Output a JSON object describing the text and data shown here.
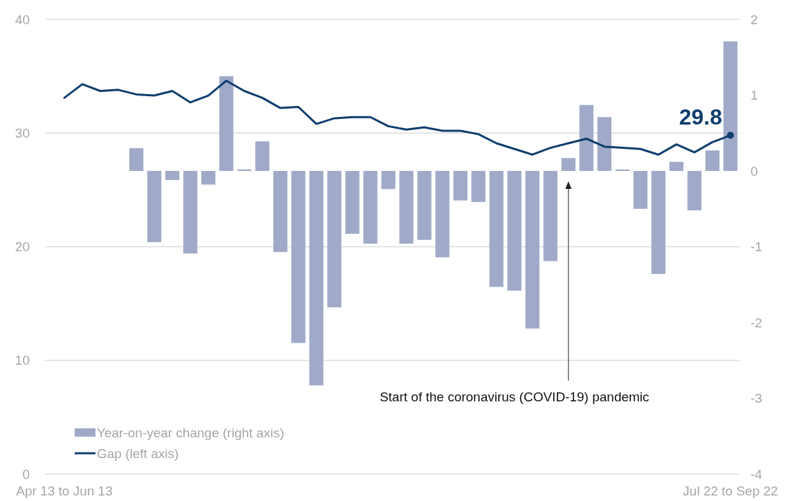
{
  "chart_data": {
    "type": "bar",
    "categories": [
      "Apr 13 to Jun 13",
      null,
      null,
      null,
      null,
      null,
      null,
      null,
      null,
      null,
      null,
      null,
      null,
      null,
      null,
      null,
      null,
      null,
      null,
      null,
      null,
      null,
      null,
      null,
      null,
      null,
      null,
      null,
      null,
      null,
      null,
      null,
      null,
      null,
      null,
      null,
      null,
      "Jul 22 to Sep 22"
    ],
    "series": [
      {
        "name": "Year-on-year change (right axis)",
        "type": "bar",
        "axis": "y2",
        "color": "#a0aac8",
        "values": [
          null,
          null,
          null,
          null,
          0.3,
          -0.94,
          -0.12,
          -1.09,
          -0.18,
          1.25,
          0.02,
          0.39,
          -1.07,
          -2.27,
          -2.83,
          -1.8,
          -0.83,
          -0.96,
          -0.24,
          -0.96,
          -0.91,
          -1.14,
          -0.39,
          -0.41,
          -1.53,
          -1.58,
          -2.08,
          -1.19,
          0.17,
          0.87,
          0.71,
          0.02,
          -0.5,
          -1.36,
          0.12,
          -0.52,
          0.27,
          1.71
        ]
      },
      {
        "name": "Gap (left axis)",
        "type": "line",
        "color": "#0e3d6e",
        "values": [
          33.1,
          34.3,
          33.7,
          33.8,
          33.4,
          33.3,
          33.7,
          32.7,
          33.3,
          34.6,
          33.7,
          33.1,
          32.2,
          32.3,
          30.8,
          31.3,
          31.4,
          31.4,
          30.6,
          30.3,
          30.5,
          30.2,
          30.2,
          29.9,
          29.1,
          28.6,
          28.1,
          28.7,
          29.1,
          29.5,
          28.8,
          28.7,
          28.6,
          28.1,
          29.0,
          28.3,
          29.2,
          29.8
        ],
        "value_labels": [
          null,
          null,
          null,
          null,
          null,
          null,
          null,
          null,
          null,
          null,
          null,
          null,
          null,
          null,
          null,
          null,
          null,
          null,
          null,
          null,
          null,
          null,
          null,
          null,
          null,
          null,
          null,
          null,
          null,
          null,
          null,
          null,
          null,
          null,
          null,
          null,
          null,
          "29.8"
        ]
      }
    ],
    "ylim": [
      0,
      40
    ],
    "yticks": [
      0,
      10,
      20,
      30,
      40
    ],
    "y2lim": [
      -4,
      2
    ],
    "y2ticks": [
      -4,
      -3,
      -2,
      -1,
      0,
      1,
      2
    ],
    "grid": "y",
    "legend": "bottom left",
    "annotations": [
      "Start of the coronavirus (COVID-19) pandemic"
    ]
  }
}
